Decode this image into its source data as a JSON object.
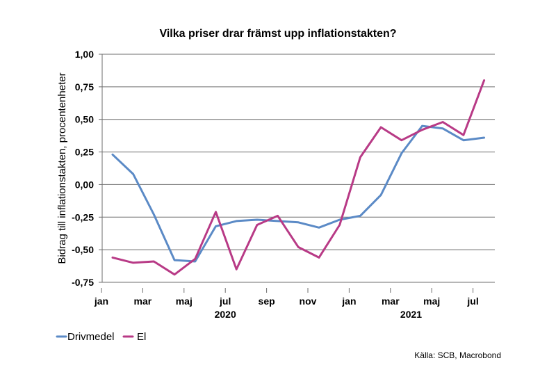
{
  "chart_data": {
    "type": "line",
    "title": "Vilka priser drar främst upp inflationstakten?",
    "ylabel": "Bidrag till inflationstakten, procentenheter",
    "xlabel": "",
    "ylim": [
      -0.75,
      1.0
    ],
    "yticks": [
      "1,00",
      "0,75",
      "0,50",
      "0,25",
      "0,00",
      "-0,25",
      "-0,50",
      "-0,75"
    ],
    "ytick_values": [
      1.0,
      0.75,
      0.5,
      0.25,
      0.0,
      -0.25,
      -0.5,
      -0.75
    ],
    "x": [
      "2020-01",
      "2020-02",
      "2020-03",
      "2020-04",
      "2020-05",
      "2020-06",
      "2020-07",
      "2020-08",
      "2020-09",
      "2020-10",
      "2020-11",
      "2020-12",
      "2021-01",
      "2021-02",
      "2021-03",
      "2021-04",
      "2021-05",
      "2021-06",
      "2021-07"
    ],
    "xtick_labels": [
      "jan",
      "mar",
      "maj",
      "jul",
      "sep",
      "nov",
      "jan",
      "mar",
      "maj",
      "jul"
    ],
    "year_labels": [
      "2020",
      "2021"
    ],
    "grid": true,
    "legend_position": "bottom-left",
    "series": [
      {
        "name": "Drivmedel",
        "color": "#5b8ac6",
        "values": [
          0.23,
          0.08,
          -0.23,
          -0.58,
          -0.59,
          -0.32,
          -0.28,
          -0.27,
          -0.28,
          -0.29,
          -0.33,
          -0.27,
          -0.24,
          -0.08,
          0.24,
          0.45,
          0.43,
          0.34,
          0.36
        ]
      },
      {
        "name": "El",
        "color": "#b83a86",
        "values": [
          -0.56,
          -0.6,
          -0.59,
          -0.69,
          -0.57,
          -0.21,
          -0.65,
          -0.31,
          -0.24,
          -0.48,
          -0.56,
          -0.31,
          0.21,
          0.44,
          0.34,
          0.42,
          0.48,
          0.38,
          0.8
        ]
      }
    ],
    "source": "Källa: SCB, Macrobond"
  }
}
